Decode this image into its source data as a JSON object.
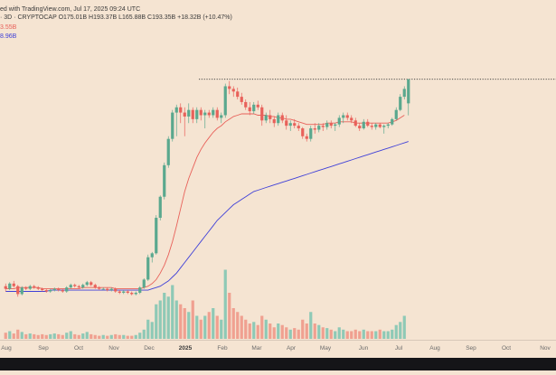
{
  "header": {
    "line1": "ed with TradingView.com, Jul 17, 2025 09:24 UTC",
    "line2": "· 3D · CRYPTOCAP  O175.01B  H193.37B  L165.88B  C193.35B  +18.32B (+10.47%)",
    "ma1": "3.55B",
    "ma2": "8.96B"
  },
  "colors": {
    "background": "#f5e4d2",
    "up": "#5aa88e",
    "down": "#e8615a",
    "ma_fast": "#e8615a",
    "ma_slow": "#3f40d8",
    "vol_up": "#8ec9b6",
    "vol_down": "#f0a090"
  },
  "chart_data": {
    "type": "candlestick",
    "x_axis_ticks": [
      "Aug",
      "Sep",
      "Oct",
      "Nov",
      "Dec",
      "2025",
      "Feb",
      "Mar",
      "Apr",
      "May",
      "Jun",
      "Jul",
      "Aug",
      "Sep",
      "Oct",
      "Nov"
    ],
    "x_axis_bold": [
      "2025"
    ],
    "price_unit": "B",
    "ylim": [
      20,
      200
    ],
    "last_close": 193.35,
    "reference_line": 193.35,
    "candles": [
      {
        "o": 36,
        "h": 38,
        "l": 32,
        "c": 34
      },
      {
        "o": 34,
        "h": 39,
        "l": 33,
        "c": 38
      },
      {
        "o": 38,
        "h": 40,
        "l": 35,
        "c": 36
      },
      {
        "o": 36,
        "h": 37,
        "l": 28,
        "c": 30
      },
      {
        "o": 30,
        "h": 36,
        "l": 29,
        "c": 35
      },
      {
        "o": 35,
        "h": 36,
        "l": 33,
        "c": 34
      },
      {
        "o": 34,
        "h": 37,
        "l": 33,
        "c": 36
      },
      {
        "o": 36,
        "h": 37,
        "l": 34,
        "c": 35
      },
      {
        "o": 35,
        "h": 36,
        "l": 33,
        "c": 34
      },
      {
        "o": 34,
        "h": 35,
        "l": 32,
        "c": 33
      },
      {
        "o": 33,
        "h": 34,
        "l": 31,
        "c": 32
      },
      {
        "o": 32,
        "h": 34,
        "l": 31,
        "c": 33
      },
      {
        "o": 33,
        "h": 35,
        "l": 32,
        "c": 34
      },
      {
        "o": 34,
        "h": 35,
        "l": 32,
        "c": 33
      },
      {
        "o": 33,
        "h": 34,
        "l": 31,
        "c": 32
      },
      {
        "o": 32,
        "h": 36,
        "l": 31,
        "c": 35
      },
      {
        "o": 35,
        "h": 38,
        "l": 34,
        "c": 37
      },
      {
        "o": 37,
        "h": 38,
        "l": 35,
        "c": 36
      },
      {
        "o": 36,
        "h": 37,
        "l": 34,
        "c": 35
      },
      {
        "o": 35,
        "h": 38,
        "l": 34,
        "c": 37
      },
      {
        "o": 37,
        "h": 40,
        "l": 36,
        "c": 39
      },
      {
        "o": 39,
        "h": 40,
        "l": 36,
        "c": 37
      },
      {
        "o": 37,
        "h": 38,
        "l": 34,
        "c": 35
      },
      {
        "o": 35,
        "h": 36,
        "l": 33,
        "c": 34
      },
      {
        "o": 34,
        "h": 35,
        "l": 33,
        "c": 34
      },
      {
        "o": 34,
        "h": 35,
        "l": 32,
        "c": 33
      },
      {
        "o": 33,
        "h": 35,
        "l": 32,
        "c": 34
      },
      {
        "o": 34,
        "h": 35,
        "l": 31,
        "c": 32
      },
      {
        "o": 32,
        "h": 33,
        "l": 30,
        "c": 31
      },
      {
        "o": 31,
        "h": 33,
        "l": 30,
        "c": 32
      },
      {
        "o": 32,
        "h": 33,
        "l": 30,
        "c": 31
      },
      {
        "o": 31,
        "h": 32,
        "l": 29,
        "c": 30
      },
      {
        "o": 30,
        "h": 32,
        "l": 29,
        "c": 31
      },
      {
        "o": 31,
        "h": 36,
        "l": 30,
        "c": 35
      },
      {
        "o": 35,
        "h": 42,
        "l": 34,
        "c": 41
      },
      {
        "o": 41,
        "h": 60,
        "l": 40,
        "c": 58
      },
      {
        "o": 58,
        "h": 62,
        "l": 54,
        "c": 61
      },
      {
        "o": 61,
        "h": 90,
        "l": 60,
        "c": 88
      },
      {
        "o": 88,
        "h": 105,
        "l": 86,
        "c": 104
      },
      {
        "o": 104,
        "h": 130,
        "l": 102,
        "c": 128
      },
      {
        "o": 128,
        "h": 150,
        "l": 126,
        "c": 148
      },
      {
        "o": 148,
        "h": 170,
        "l": 146,
        "c": 168
      },
      {
        "o": 168,
        "h": 174,
        "l": 150,
        "c": 172
      },
      {
        "o": 172,
        "h": 175,
        "l": 160,
        "c": 168
      },
      {
        "o": 168,
        "h": 172,
        "l": 150,
        "c": 165
      },
      {
        "o": 165,
        "h": 175,
        "l": 160,
        "c": 170
      },
      {
        "o": 170,
        "h": 172,
        "l": 160,
        "c": 163
      },
      {
        "o": 163,
        "h": 172,
        "l": 160,
        "c": 170
      },
      {
        "o": 170,
        "h": 172,
        "l": 162,
        "c": 166
      },
      {
        "o": 166,
        "h": 170,
        "l": 156,
        "c": 168
      },
      {
        "o": 168,
        "h": 170,
        "l": 164,
        "c": 166
      },
      {
        "o": 166,
        "h": 172,
        "l": 164,
        "c": 170
      },
      {
        "o": 170,
        "h": 172,
        "l": 162,
        "c": 164
      },
      {
        "o": 164,
        "h": 168,
        "l": 160,
        "c": 166
      },
      {
        "o": 166,
        "h": 190,
        "l": 164,
        "c": 188
      },
      {
        "o": 188,
        "h": 192,
        "l": 182,
        "c": 186
      },
      {
        "o": 186,
        "h": 188,
        "l": 180,
        "c": 184
      },
      {
        "o": 184,
        "h": 187,
        "l": 178,
        "c": 180
      },
      {
        "o": 180,
        "h": 183,
        "l": 174,
        "c": 176
      },
      {
        "o": 176,
        "h": 178,
        "l": 170,
        "c": 172
      },
      {
        "o": 172,
        "h": 176,
        "l": 166,
        "c": 169
      },
      {
        "o": 169,
        "h": 176,
        "l": 167,
        "c": 174
      },
      {
        "o": 174,
        "h": 177,
        "l": 170,
        "c": 172
      },
      {
        "o": 172,
        "h": 174,
        "l": 158,
        "c": 162
      },
      {
        "o": 162,
        "h": 168,
        "l": 160,
        "c": 166
      },
      {
        "o": 166,
        "h": 170,
        "l": 160,
        "c": 163
      },
      {
        "o": 163,
        "h": 165,
        "l": 157,
        "c": 160
      },
      {
        "o": 160,
        "h": 168,
        "l": 158,
        "c": 166
      },
      {
        "o": 166,
        "h": 168,
        "l": 160,
        "c": 162
      },
      {
        "o": 162,
        "h": 166,
        "l": 155,
        "c": 158
      },
      {
        "o": 158,
        "h": 162,
        "l": 154,
        "c": 160
      },
      {
        "o": 160,
        "h": 163,
        "l": 156,
        "c": 158
      },
      {
        "o": 158,
        "h": 160,
        "l": 154,
        "c": 156
      },
      {
        "o": 156,
        "h": 157,
        "l": 148,
        "c": 150
      },
      {
        "o": 150,
        "h": 152,
        "l": 146,
        "c": 148
      },
      {
        "o": 148,
        "h": 158,
        "l": 146,
        "c": 156
      },
      {
        "o": 156,
        "h": 160,
        "l": 152,
        "c": 155
      },
      {
        "o": 155,
        "h": 160,
        "l": 153,
        "c": 158
      },
      {
        "o": 158,
        "h": 160,
        "l": 154,
        "c": 157
      },
      {
        "o": 157,
        "h": 162,
        "l": 155,
        "c": 160
      },
      {
        "o": 160,
        "h": 162,
        "l": 156,
        "c": 158
      },
      {
        "o": 158,
        "h": 160,
        "l": 154,
        "c": 159
      },
      {
        "o": 159,
        "h": 166,
        "l": 157,
        "c": 164
      },
      {
        "o": 164,
        "h": 168,
        "l": 160,
        "c": 166
      },
      {
        "o": 166,
        "h": 168,
        "l": 162,
        "c": 164
      },
      {
        "o": 164,
        "h": 166,
        "l": 160,
        "c": 162
      },
      {
        "o": 162,
        "h": 164,
        "l": 157,
        "c": 158
      },
      {
        "o": 158,
        "h": 160,
        "l": 154,
        "c": 156
      },
      {
        "o": 156,
        "h": 163,
        "l": 155,
        "c": 161
      },
      {
        "o": 161,
        "h": 163,
        "l": 157,
        "c": 158
      },
      {
        "o": 158,
        "h": 160,
        "l": 155,
        "c": 157
      },
      {
        "o": 157,
        "h": 160,
        "l": 155,
        "c": 159
      },
      {
        "o": 159,
        "h": 160,
        "l": 156,
        "c": 157
      },
      {
        "o": 157,
        "h": 159,
        "l": 152,
        "c": 158
      },
      {
        "o": 158,
        "h": 160,
        "l": 156,
        "c": 159
      },
      {
        "o": 159,
        "h": 164,
        "l": 158,
        "c": 163
      },
      {
        "o": 163,
        "h": 172,
        "l": 162,
        "c": 170
      },
      {
        "o": 170,
        "h": 182,
        "l": 169,
        "c": 180
      },
      {
        "o": 180,
        "h": 188,
        "l": 178,
        "c": 186
      },
      {
        "o": 175.01,
        "h": 193.37,
        "l": 165.88,
        "c": 193.35
      }
    ],
    "ma_fast": [
      34,
      34,
      34,
      35,
      35,
      35,
      35,
      35,
      35,
      34,
      34,
      34,
      34,
      34,
      34,
      34,
      34,
      34,
      34,
      35,
      35,
      35,
      35,
      35,
      35,
      35,
      35,
      34,
      34,
      34,
      34,
      34,
      34,
      34,
      35,
      36,
      38,
      41,
      46,
      52,
      60,
      70,
      82,
      95,
      108,
      118,
      126,
      134,
      140,
      145,
      149,
      153,
      156,
      158,
      161,
      163,
      165,
      166,
      167,
      167,
      167,
      167,
      166,
      166,
      166,
      165,
      165,
      164,
      164,
      163,
      163,
      162,
      161,
      160,
      159,
      159,
      159,
      159,
      159,
      160,
      160,
      160,
      161,
      161,
      161,
      161,
      160,
      160,
      160,
      160,
      160,
      160,
      160,
      160,
      160,
      161,
      162,
      164,
      166
    ],
    "ma_slow": [
      32,
      32,
      32,
      32,
      32,
      32,
      32,
      32,
      32,
      32,
      32,
      33,
      33,
      33,
      33,
      33,
      33,
      33,
      33,
      33,
      33,
      33,
      33,
      33,
      33,
      33,
      33,
      33,
      33,
      33,
      33,
      33,
      33,
      33,
      33,
      33,
      34,
      35,
      36,
      38,
      40,
      43,
      46,
      50,
      54,
      58,
      62,
      66,
      70,
      74,
      78,
      82,
      86,
      89,
      92,
      95,
      98,
      100,
      102,
      104,
      106,
      108,
      109,
      110,
      111,
      112,
      113,
      114,
      115,
      116,
      117,
      118,
      119,
      120,
      121,
      122,
      123,
      124,
      125,
      126,
      127,
      128,
      129,
      130,
      131,
      132,
      133,
      134,
      135,
      136,
      137,
      138,
      139,
      140,
      141,
      142,
      143,
      144,
      145,
      146
    ],
    "volume_unit": "relative",
    "volume": [
      0.08,
      0.1,
      0.07,
      0.12,
      0.09,
      0.06,
      0.07,
      0.06,
      0.05,
      0.06,
      0.05,
      0.06,
      0.07,
      0.06,
      0.05,
      0.08,
      0.1,
      0.06,
      0.05,
      0.07,
      0.09,
      0.06,
      0.05,
      0.04,
      0.05,
      0.04,
      0.05,
      0.06,
      0.05,
      0.05,
      0.04,
      0.04,
      0.05,
      0.08,
      0.12,
      0.25,
      0.22,
      0.45,
      0.5,
      0.6,
      0.55,
      0.7,
      0.5,
      0.45,
      0.4,
      0.35,
      0.5,
      0.3,
      0.25,
      0.3,
      0.35,
      0.4,
      0.3,
      0.25,
      0.9,
      0.6,
      0.4,
      0.35,
      0.3,
      0.25,
      0.2,
      0.22,
      0.18,
      0.3,
      0.25,
      0.2,
      0.15,
      0.2,
      0.18,
      0.15,
      0.12,
      0.14,
      0.12,
      0.25,
      0.2,
      0.35,
      0.2,
      0.18,
      0.15,
      0.14,
      0.12,
      0.1,
      0.15,
      0.12,
      0.1,
      0.1,
      0.12,
      0.1,
      0.12,
      0.1,
      0.1,
      0.1,
      0.12,
      0.1,
      0.1,
      0.12,
      0.18,
      0.22,
      0.3
    ]
  }
}
